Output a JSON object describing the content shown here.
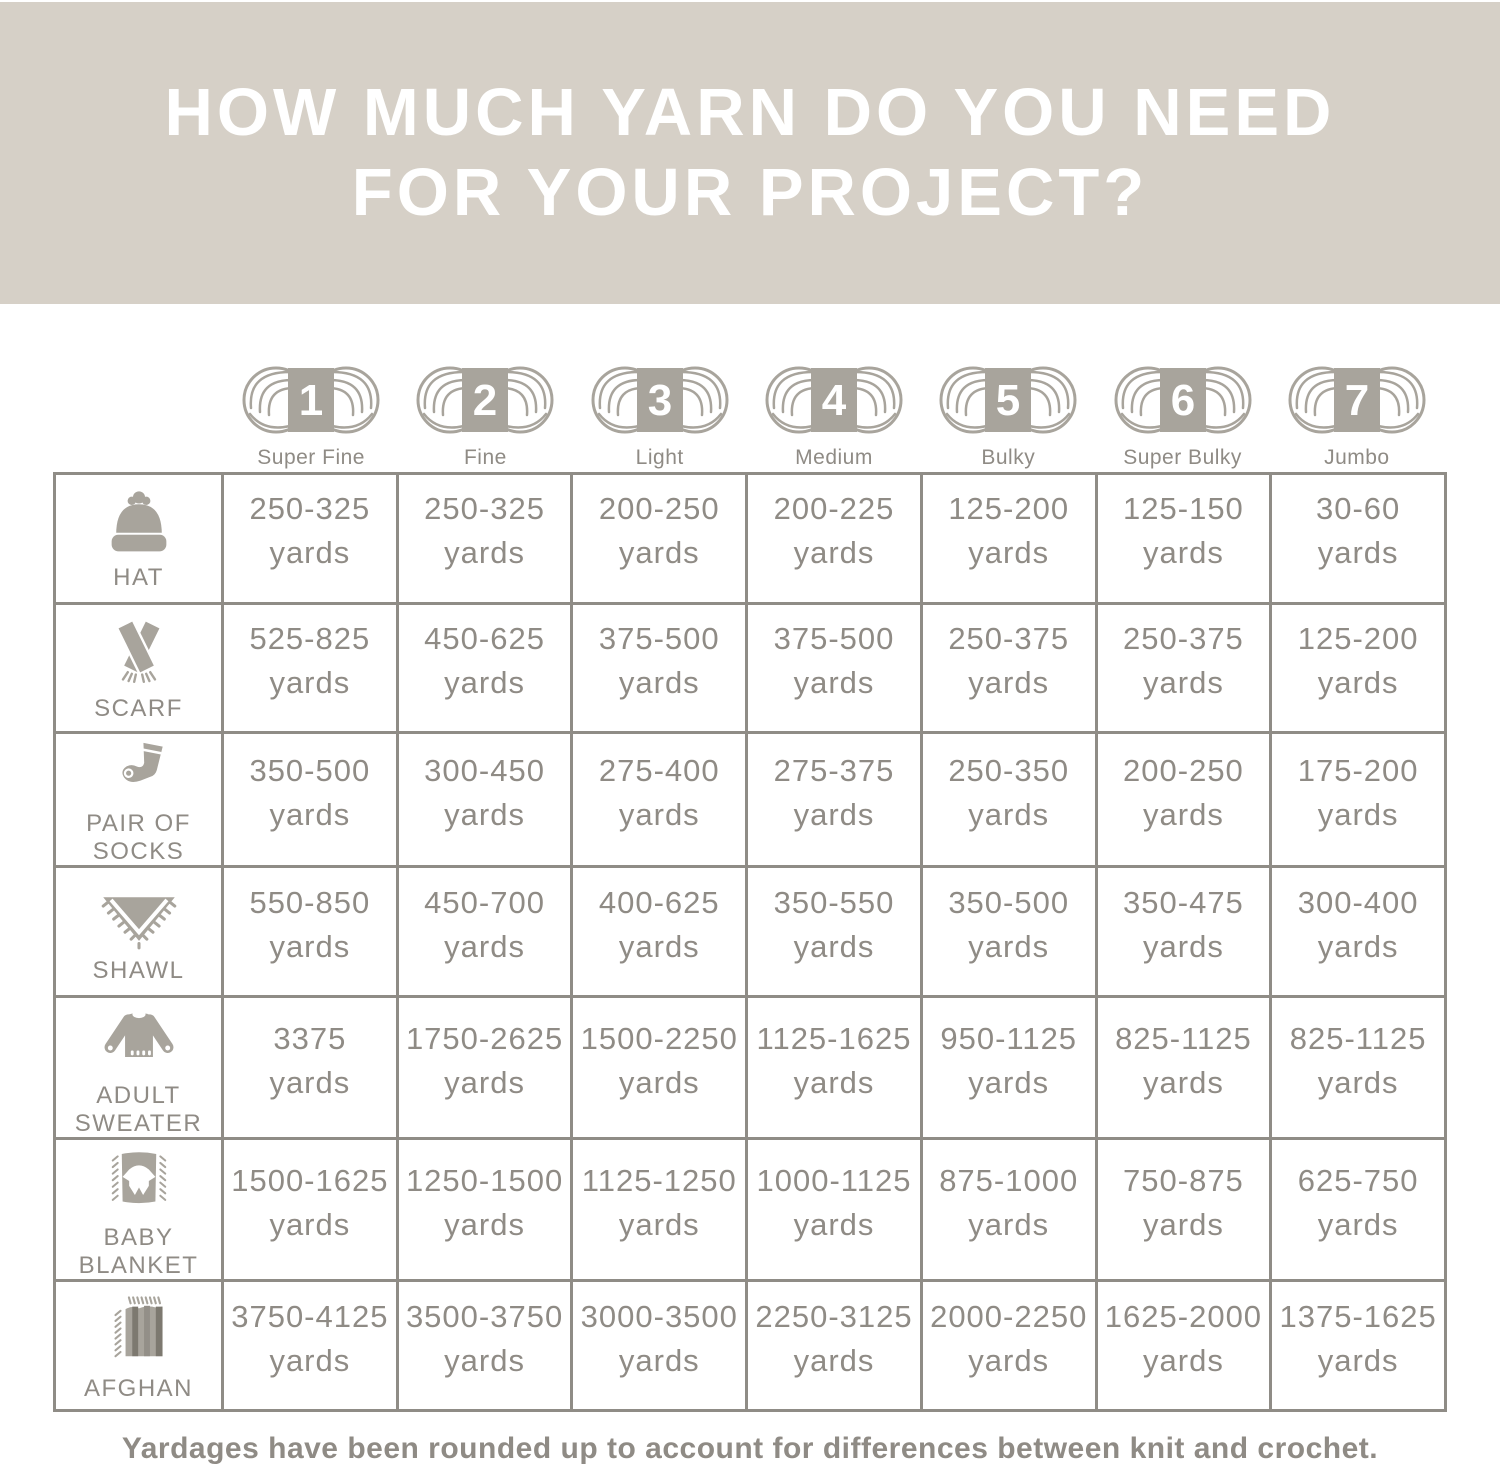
{
  "header": {
    "title_line1": "HOW MUCH YARN DO YOU NEED",
    "title_line2": "FOR YOUR PROJECT?"
  },
  "yarn_weights": [
    {
      "number": "1",
      "label": "Super Fine"
    },
    {
      "number": "2",
      "label": "Fine"
    },
    {
      "number": "3",
      "label": "Light"
    },
    {
      "number": "4",
      "label": "Medium"
    },
    {
      "number": "5",
      "label": "Bulky"
    },
    {
      "number": "6",
      "label": "Super Bulky"
    },
    {
      "number": "7",
      "label": "Jumbo"
    }
  ],
  "table": {
    "unit": "yards",
    "rows": [
      {
        "project": "HAT",
        "icon": "hat-icon",
        "ranges": [
          "250-325",
          "250-325",
          "200-250",
          "200-225",
          "125-200",
          "125-150",
          "30-60"
        ]
      },
      {
        "project": "SCARF",
        "icon": "scarf-icon",
        "ranges": [
          "525-825",
          "450-625",
          "375-500",
          "375-500",
          "250-375",
          "250-375",
          "125-200"
        ]
      },
      {
        "project": "PAIR OF SOCKS",
        "icon": "socks-icon",
        "ranges": [
          "350-500",
          "300-450",
          "275-400",
          "275-375",
          "250-350",
          "200-250",
          "175-200"
        ]
      },
      {
        "project": "SHAWL",
        "icon": "shawl-icon",
        "ranges": [
          "550-850",
          "450-700",
          "400-625",
          "350-550",
          "350-500",
          "350-475",
          "300-400"
        ]
      },
      {
        "project": "ADULT SWEATER",
        "icon": "sweater-icon",
        "ranges": [
          "3375",
          "1750-2625",
          "1500-2250",
          "1125-1625",
          "950-1125",
          "825-1125",
          "825-1125"
        ]
      },
      {
        "project": "BABY BLANKET",
        "icon": "baby-blanket-icon",
        "ranges": [
          "1500-1625",
          "1250-1500",
          "1125-1250",
          "1000-1125",
          "875-1000",
          "750-875",
          "625-750"
        ]
      },
      {
        "project": "AFGHAN",
        "icon": "afghan-icon",
        "ranges": [
          "3750-4125",
          "3500-3750",
          "3000-3500",
          "2250-3125",
          "2000-2250",
          "1625-2000",
          "1375-1625"
        ]
      }
    ]
  },
  "footer": {
    "note": "Yardages have been rounded up to account for differences between knit and crochet."
  },
  "colors": {
    "header_background": "#d6d0c7",
    "header_text": "#ffffff",
    "icon_gray": "#a8a49c",
    "icon_dark_gray": "#7d7970",
    "table_border": "#8f8c86",
    "text_gray": "#8f8b85",
    "background": "#ffffff"
  },
  "chart_data": {
    "type": "table",
    "title": "HOW MUCH YARN DO YOU NEED FOR YOUR PROJECT?",
    "columns": [
      "Super Fine",
      "Fine",
      "Light",
      "Medium",
      "Bulky",
      "Super Bulky",
      "Jumbo"
    ],
    "column_numbers": [
      1,
      2,
      3,
      4,
      5,
      6,
      7
    ],
    "unit": "yards",
    "rows": [
      {
        "project": "Hat",
        "values": [
          "250-325",
          "250-325",
          "200-250",
          "200-225",
          "125-200",
          "125-150",
          "30-60"
        ]
      },
      {
        "project": "Scarf",
        "values": [
          "525-825",
          "450-625",
          "375-500",
          "375-500",
          "250-375",
          "250-375",
          "125-200"
        ]
      },
      {
        "project": "Pair of Socks",
        "values": [
          "350-500",
          "300-450",
          "275-400",
          "275-375",
          "250-350",
          "200-250",
          "175-200"
        ]
      },
      {
        "project": "Shawl",
        "values": [
          "550-850",
          "450-700",
          "400-625",
          "350-550",
          "350-500",
          "350-475",
          "300-400"
        ]
      },
      {
        "project": "Adult Sweater",
        "values": [
          "3375",
          "1750-2625",
          "1500-2250",
          "1125-1625",
          "950-1125",
          "825-1125",
          "825-1125"
        ]
      },
      {
        "project": "Baby Blanket",
        "values": [
          "1500-1625",
          "1250-1500",
          "1125-1250",
          "1000-1125",
          "875-1000",
          "750-875",
          "625-750"
        ]
      },
      {
        "project": "Afghan",
        "values": [
          "3750-4125",
          "3500-3750",
          "3000-3500",
          "2250-3125",
          "2000-2250",
          "1625-2000",
          "1375-1625"
        ]
      }
    ],
    "note": "Yardages have been rounded up to account for differences between knit and crochet."
  }
}
